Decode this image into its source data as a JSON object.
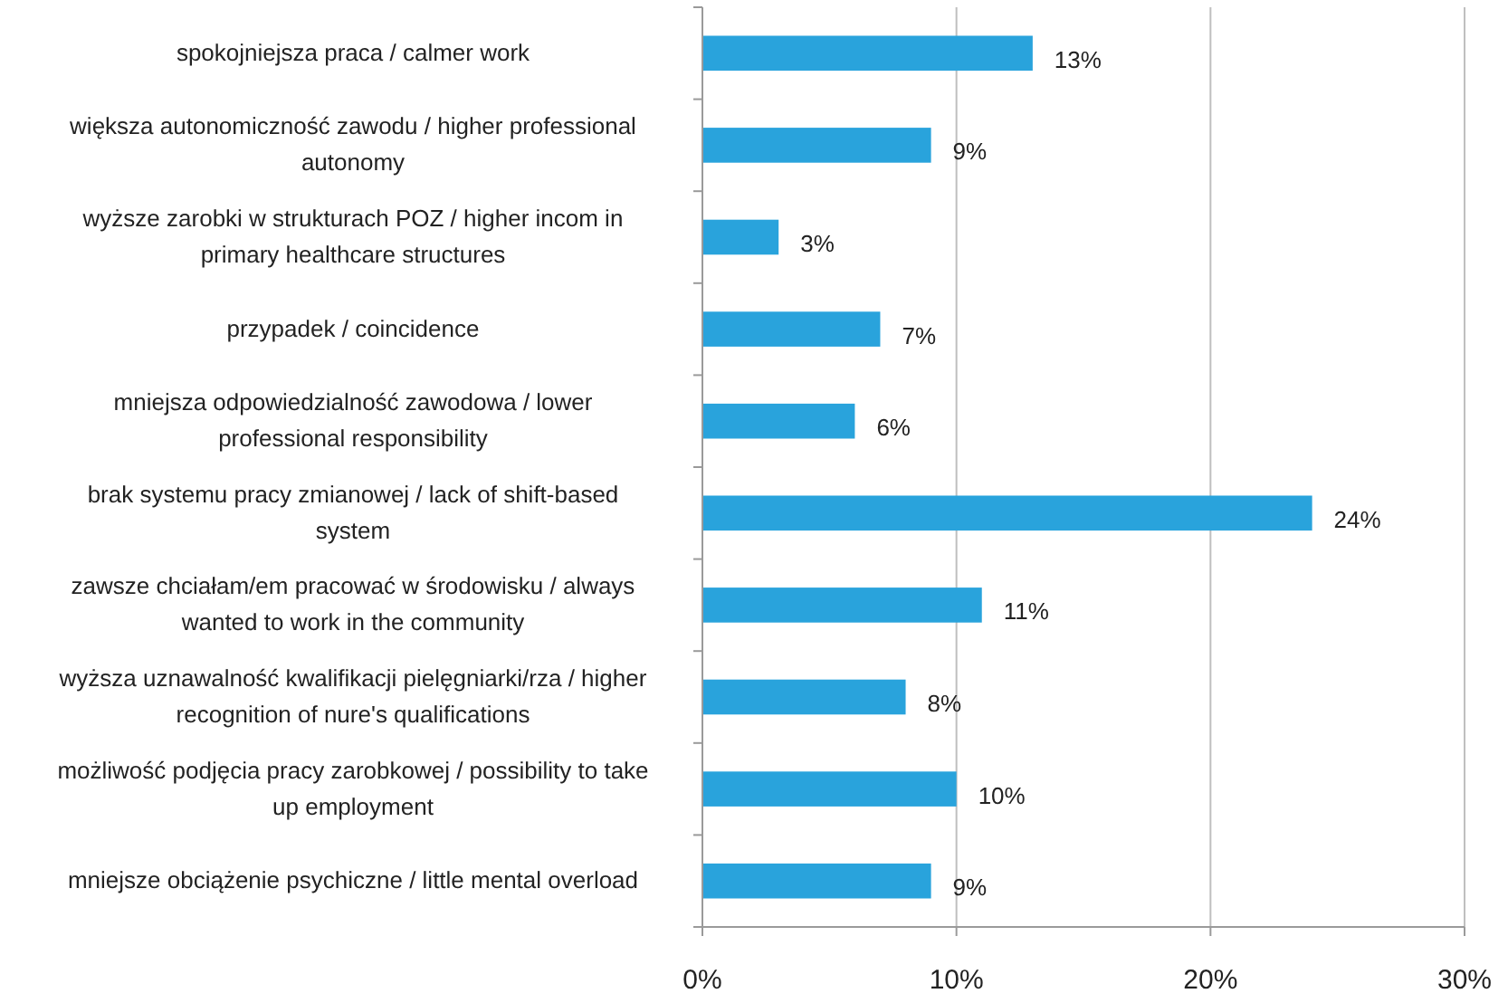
{
  "chart_data": {
    "type": "bar",
    "orientation": "horizontal",
    "categories": [
      "spokojniejsza praca / calmer work",
      "większa autonomiczność zawodu / higher professional autonomy",
      "wyższe zarobki w strukturach POZ / higher incom in primary healthcare structures",
      "przypadek / coincidence",
      "mniejsza odpowiedzialność zawodowa / lower professional responsibility",
      "brak systemu pracy zmianowej / lack of shift-based system",
      "zawsze chciałam/em pracować w środowisku / always wanted to work in the community",
      "wyższa uznawalność kwalifikacji pielęgniarki/rza / higher recognition of nure's qualifications",
      "możliwość podjęcia pracy zarobkowej / possibility to take up employment",
      "mniejsze obciążenie psychiczne / little mental overload"
    ],
    "values": [
      13,
      9,
      3,
      7,
      6,
      24,
      11,
      8,
      10,
      9
    ],
    "value_labels": [
      "13%",
      "9%",
      "3%",
      "7%",
      "6%",
      "24%",
      "11%",
      "8%",
      "10%",
      "9%"
    ],
    "color": "#29a3dc",
    "xlim": [
      0,
      30
    ],
    "xticks": [
      {
        "value": 0,
        "label": "0%"
      },
      {
        "value": 10,
        "label": "10%"
      },
      {
        "value": 20,
        "label": "20%"
      },
      {
        "value": 30,
        "label": "30%"
      }
    ],
    "grid": "x"
  }
}
